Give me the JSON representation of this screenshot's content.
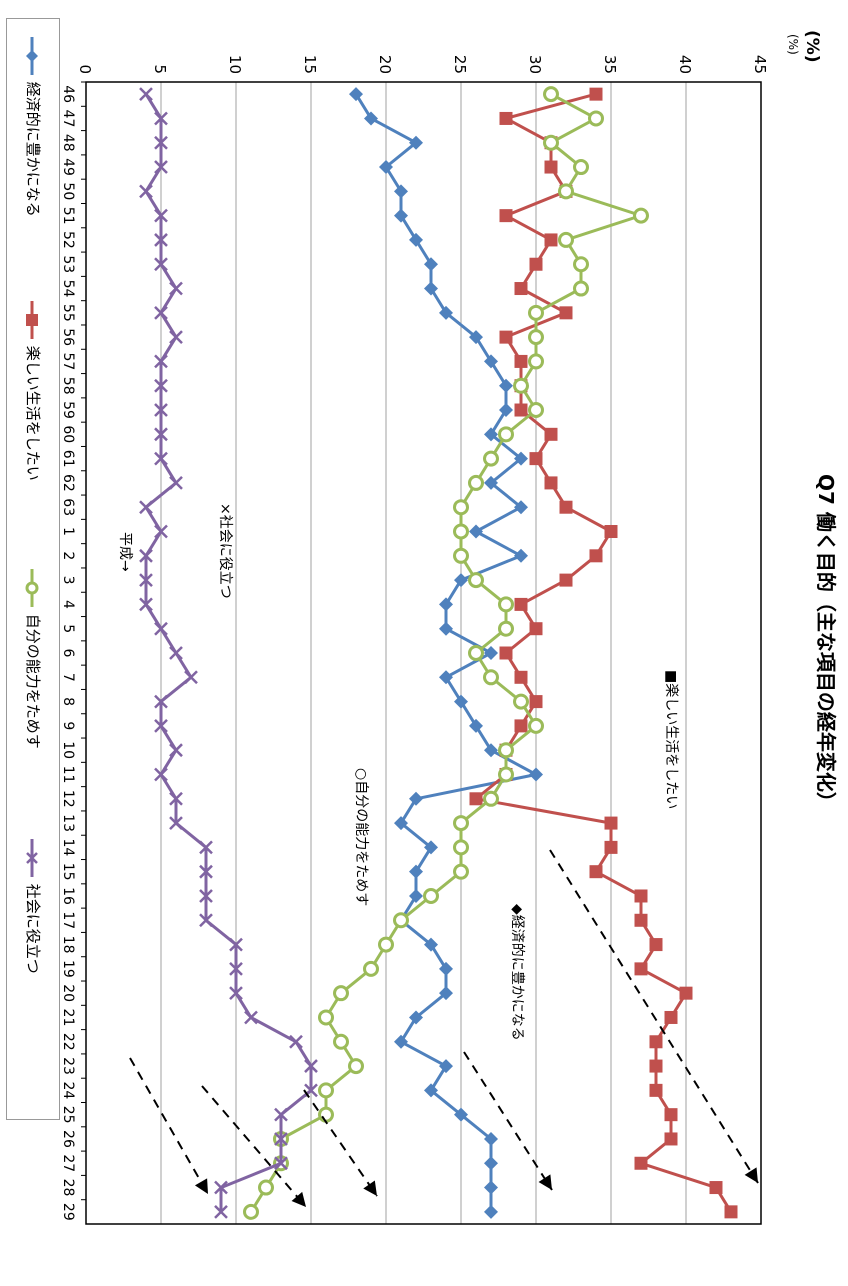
{
  "title": "Q7 働く目的（主な項目の経年変化）",
  "unit": "(%)",
  "unit_small": "(%)",
  "notes": {
    "tanoshii": "■楽しい生活をしたい",
    "jibun": "○自分の能力をためす",
    "keizai": "◆経済的に豊かになる",
    "shakai": "×社会に役立つ",
    "heisei": "平成→"
  },
  "legend": {
    "keizai": "経済的に豊かになる",
    "tanoshii": "楽しい生活をしたい",
    "jibun": "自分の能力をためす",
    "shakai": "社会に役立つ"
  },
  "colors": {
    "keizai": "#4F81BD",
    "tanoshii": "#C0504D",
    "jibun": "#9BBB59",
    "shakai": "#8064A2",
    "grid": "#A0A0A0"
  },
  "chart_data": {
    "type": "line",
    "title": "Q7 働く目的（主な項目の経年変化）",
    "ylabel": "(%)",
    "ylim": [
      0,
      45
    ],
    "yticks": [
      0,
      5,
      10,
      15,
      20,
      25,
      30,
      35,
      40,
      45
    ],
    "x": [
      "46",
      "47",
      "48",
      "49",
      "50",
      "51",
      "52",
      "53",
      "54",
      "55",
      "56",
      "57",
      "58",
      "59",
      "60",
      "61",
      "62",
      "63",
      "1",
      "2",
      "3",
      "4",
      "5",
      "6",
      "7",
      "8",
      "9",
      "10",
      "11",
      "12",
      "13",
      "14",
      "15",
      "16",
      "17",
      "18",
      "19",
      "20",
      "21",
      "22",
      "23",
      "24",
      "25",
      "26",
      "27",
      "28",
      "29"
    ],
    "grid": true,
    "legend_position": "bottom",
    "series": [
      {
        "name": "経済的に豊かになる",
        "key": "keizai",
        "marker": "diamond",
        "values": [
          18,
          19,
          22,
          20,
          21,
          21,
          22,
          23,
          23,
          24,
          26,
          27,
          28,
          28,
          27,
          29,
          27,
          29,
          26,
          29,
          25,
          24,
          24,
          27,
          24,
          25,
          26,
          27,
          30,
          22,
          21,
          23,
          22,
          22,
          21,
          23,
          24,
          24,
          22,
          21,
          24,
          23,
          25,
          27,
          27,
          27,
          27
        ]
      },
      {
        "name": "楽しい生活をしたい",
        "key": "tanoshii",
        "marker": "square",
        "values": [
          34,
          28,
          31,
          31,
          32,
          28,
          31,
          30,
          29,
          32,
          28,
          29,
          29,
          29,
          31,
          30,
          31,
          32,
          35,
          34,
          32,
          29,
          30,
          28,
          29,
          30,
          29,
          28,
          28,
          26,
          35,
          35,
          34,
          37,
          37,
          38,
          37,
          40,
          39,
          38,
          38,
          38,
          39,
          39,
          37,
          42,
          43
        ]
      },
      {
        "name": "自分の能力をためす",
        "key": "jibun",
        "marker": "circle",
        "values": [
          31,
          34,
          31,
          33,
          32,
          37,
          32,
          33,
          33,
          30,
          30,
          30,
          29,
          30,
          28,
          27,
          26,
          25,
          25,
          25,
          26,
          28,
          28,
          26,
          27,
          29,
          30,
          28,
          28,
          27,
          25,
          25,
          25,
          23,
          21,
          20,
          19,
          17,
          16,
          17,
          18,
          16,
          16,
          13,
          13,
          12,
          11
        ]
      },
      {
        "name": "社会に役立つ",
        "key": "shakai",
        "marker": "x",
        "values": [
          4,
          5,
          5,
          5,
          4,
          5,
          5,
          5,
          6,
          5,
          6,
          5,
          5,
          5,
          5,
          5,
          6,
          4,
          5,
          4,
          4,
          4,
          5,
          6,
          7,
          5,
          5,
          6,
          5,
          6,
          6,
          8,
          8,
          8,
          8,
          10,
          10,
          10,
          11,
          14,
          15,
          15,
          13,
          13,
          13,
          9,
          9
        ]
      }
    ]
  }
}
